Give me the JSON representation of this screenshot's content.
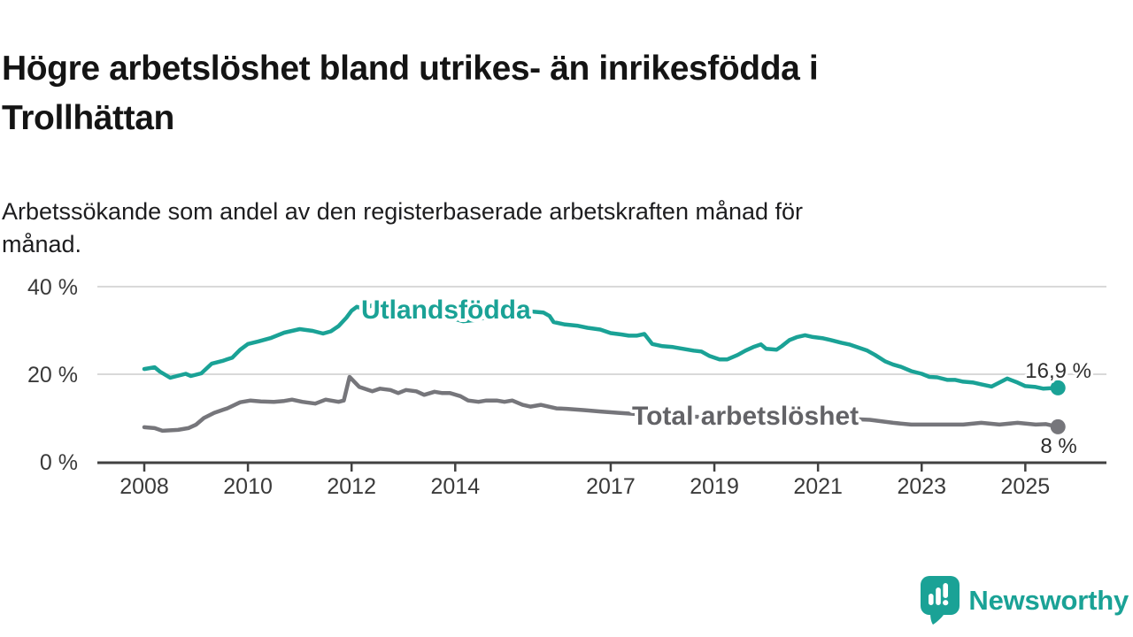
{
  "header": {
    "title": "Högre arbetslöshet bland utrikes- än inrikesfödda i\nTrollhättan",
    "subtitle": "Arbetssökande som andel av den registerbaserade arbetskraften månad för\nmånad."
  },
  "branding": {
    "logo_text": "Newsworthy",
    "logo_icon": "speech-bubble-bar-chart-icon"
  },
  "colors": {
    "accent_teal": "#1aa296",
    "series_gray": "#76767b",
    "series_gray_label": "#636367",
    "axis": "#414141",
    "grid": "#d9d9d9",
    "tick_text": "#3a3a3a",
    "value_text": "#2e2e2e",
    "title_text": "#141414"
  },
  "chart_data": {
    "type": "line",
    "unit": "%",
    "grid": "horizontal-only",
    "legend_position": "inline-labels",
    "x_range_years": [
      2008,
      2025.63
    ],
    "x_axis": {
      "ticks": [
        {
          "value": 2008,
          "label": "2008"
        },
        {
          "value": 2010,
          "label": "2010"
        },
        {
          "value": 2012,
          "label": "2012"
        },
        {
          "value": 2014,
          "label": "2014"
        },
        {
          "value": 2017,
          "label": "2017"
        },
        {
          "value": 2019,
          "label": "2019"
        },
        {
          "value": 2021,
          "label": "2021"
        },
        {
          "value": 2023,
          "label": "2023"
        },
        {
          "value": 2025,
          "label": "2025"
        }
      ]
    },
    "y_axis": {
      "range": [
        0,
        42
      ],
      "ticks": [
        {
          "value": 40,
          "label": "40 %"
        },
        {
          "value": 20,
          "label": "20 %"
        },
        {
          "value": 0,
          "label": "0 %"
        }
      ]
    },
    "series": [
      {
        "id": "utlandsfodda",
        "name": "Utlandsfödda",
        "color": "#1aa296",
        "end_value": 16.9,
        "end_label": "16,9 %",
        "points": [
          [
            2008.0,
            21.2
          ],
          [
            2008.2,
            21.6
          ],
          [
            2008.3,
            20.6
          ],
          [
            2008.5,
            19.2
          ],
          [
            2008.6,
            19.5
          ],
          [
            2008.8,
            20.1
          ],
          [
            2008.9,
            19.6
          ],
          [
            2009.1,
            20.2
          ],
          [
            2009.3,
            22.4
          ],
          [
            2009.5,
            23.0
          ],
          [
            2009.7,
            23.8
          ],
          [
            2009.85,
            25.6
          ],
          [
            2010.0,
            26.9
          ],
          [
            2010.2,
            27.5
          ],
          [
            2010.45,
            28.3
          ],
          [
            2010.7,
            29.5
          ],
          [
            2011.0,
            30.3
          ],
          [
            2011.25,
            29.9
          ],
          [
            2011.45,
            29.3
          ],
          [
            2011.6,
            29.8
          ],
          [
            2011.75,
            31.0
          ],
          [
            2011.9,
            32.9
          ],
          [
            2012.0,
            34.5
          ],
          [
            2012.1,
            35.4
          ],
          [
            2012.25,
            34.9
          ],
          [
            2012.4,
            35.8
          ],
          [
            2012.55,
            35.3
          ],
          [
            2012.75,
            35.1
          ],
          [
            2013.0,
            34.8
          ],
          [
            2013.3,
            34.2
          ],
          [
            2013.6,
            33.6
          ],
          [
            2013.9,
            32.9
          ],
          [
            2014.15,
            32.1
          ],
          [
            2014.4,
            32.4
          ],
          [
            2014.7,
            33.3
          ],
          [
            2015.0,
            34.0
          ],
          [
            2015.25,
            34.7
          ],
          [
            2015.5,
            34.3
          ],
          [
            2015.7,
            34.1
          ],
          [
            2015.82,
            33.3
          ],
          [
            2015.9,
            31.9
          ],
          [
            2016.1,
            31.4
          ],
          [
            2016.35,
            31.1
          ],
          [
            2016.55,
            30.6
          ],
          [
            2016.8,
            30.2
          ],
          [
            2017.0,
            29.4
          ],
          [
            2017.2,
            29.1
          ],
          [
            2017.35,
            28.8
          ],
          [
            2017.5,
            28.8
          ],
          [
            2017.65,
            29.2
          ],
          [
            2017.8,
            26.9
          ],
          [
            2018.0,
            26.4
          ],
          [
            2018.2,
            26.2
          ],
          [
            2018.4,
            25.8
          ],
          [
            2018.6,
            25.4
          ],
          [
            2018.75,
            25.2
          ],
          [
            2018.9,
            24.2
          ],
          [
            2019.0,
            23.8
          ],
          [
            2019.1,
            23.4
          ],
          [
            2019.25,
            23.4
          ],
          [
            2019.45,
            24.4
          ],
          [
            2019.6,
            25.4
          ],
          [
            2019.75,
            26.2
          ],
          [
            2019.9,
            26.8
          ],
          [
            2020.0,
            25.8
          ],
          [
            2020.2,
            25.6
          ],
          [
            2020.3,
            26.4
          ],
          [
            2020.45,
            27.8
          ],
          [
            2020.6,
            28.5
          ],
          [
            2020.75,
            28.9
          ],
          [
            2020.9,
            28.5
          ],
          [
            2021.1,
            28.2
          ],
          [
            2021.25,
            27.8
          ],
          [
            2021.45,
            27.2
          ],
          [
            2021.6,
            26.8
          ],
          [
            2021.75,
            26.2
          ],
          [
            2021.95,
            25.4
          ],
          [
            2022.1,
            24.4
          ],
          [
            2022.3,
            22.9
          ],
          [
            2022.45,
            22.2
          ],
          [
            2022.6,
            21.7
          ],
          [
            2022.8,
            20.7
          ],
          [
            2023.0,
            20.1
          ],
          [
            2023.15,
            19.4
          ],
          [
            2023.3,
            19.3
          ],
          [
            2023.5,
            18.7
          ],
          [
            2023.65,
            18.7
          ],
          [
            2023.8,
            18.3
          ],
          [
            2024.0,
            18.1
          ],
          [
            2024.15,
            17.7
          ],
          [
            2024.35,
            17.2
          ],
          [
            2024.5,
            18.1
          ],
          [
            2024.65,
            19.0
          ],
          [
            2024.85,
            18.1
          ],
          [
            2025.0,
            17.3
          ],
          [
            2025.2,
            17.1
          ],
          [
            2025.35,
            16.7
          ],
          [
            2025.5,
            16.8
          ],
          [
            2025.63,
            16.9
          ]
        ]
      },
      {
        "id": "total",
        "name": "Total arbetslöshet",
        "color": "#76767b",
        "end_value": 8,
        "end_label": "8 %",
        "points": [
          [
            2008.0,
            7.9
          ],
          [
            2008.2,
            7.7
          ],
          [
            2008.35,
            7.1
          ],
          [
            2008.5,
            7.2
          ],
          [
            2008.65,
            7.3
          ],
          [
            2008.85,
            7.7
          ],
          [
            2009.0,
            8.5
          ],
          [
            2009.15,
            10.0
          ],
          [
            2009.35,
            11.2
          ],
          [
            2009.6,
            12.2
          ],
          [
            2009.85,
            13.6
          ],
          [
            2010.05,
            14.0
          ],
          [
            2010.25,
            13.8
          ],
          [
            2010.5,
            13.7
          ],
          [
            2010.7,
            13.9
          ],
          [
            2010.85,
            14.2
          ],
          [
            2011.05,
            13.7
          ],
          [
            2011.3,
            13.3
          ],
          [
            2011.5,
            14.2
          ],
          [
            2011.75,
            13.7
          ],
          [
            2011.85,
            14.0
          ],
          [
            2011.96,
            19.4
          ],
          [
            2012.15,
            17.1
          ],
          [
            2012.4,
            16.1
          ],
          [
            2012.55,
            16.7
          ],
          [
            2012.75,
            16.4
          ],
          [
            2012.9,
            15.7
          ],
          [
            2013.05,
            16.4
          ],
          [
            2013.25,
            16.1
          ],
          [
            2013.4,
            15.3
          ],
          [
            2013.6,
            16.0
          ],
          [
            2013.75,
            15.7
          ],
          [
            2013.9,
            15.7
          ],
          [
            2014.1,
            15.0
          ],
          [
            2014.25,
            14.0
          ],
          [
            2014.45,
            13.7
          ],
          [
            2014.6,
            14.0
          ],
          [
            2014.8,
            14.0
          ],
          [
            2014.95,
            13.7
          ],
          [
            2015.1,
            14.0
          ],
          [
            2015.3,
            13.0
          ],
          [
            2015.45,
            12.6
          ],
          [
            2015.65,
            13.0
          ],
          [
            2015.8,
            12.6
          ],
          [
            2015.95,
            12.2
          ],
          [
            2016.15,
            12.1
          ],
          [
            2016.5,
            11.8
          ],
          [
            2016.8,
            11.5
          ],
          [
            2017.15,
            11.2
          ],
          [
            2017.4,
            11.0
          ],
          [
            2017.8,
            10.7
          ],
          [
            2018.2,
            10.5
          ],
          [
            2018.6,
            10.3
          ],
          [
            2019.0,
            10.2
          ],
          [
            2019.5,
            10.1
          ],
          [
            2020.0,
            10.8
          ],
          [
            2020.4,
            10.6
          ],
          [
            2020.8,
            10.3
          ],
          [
            2021.2,
            10.0
          ],
          [
            2021.6,
            9.8
          ],
          [
            2022.0,
            9.6
          ],
          [
            2022.45,
            8.9
          ],
          [
            2022.8,
            8.5
          ],
          [
            2023.25,
            8.5
          ],
          [
            2023.8,
            8.5
          ],
          [
            2024.15,
            8.9
          ],
          [
            2024.5,
            8.5
          ],
          [
            2024.85,
            8.9
          ],
          [
            2025.2,
            8.5
          ],
          [
            2025.4,
            8.6
          ],
          [
            2025.63,
            8.0
          ]
        ]
      }
    ]
  }
}
